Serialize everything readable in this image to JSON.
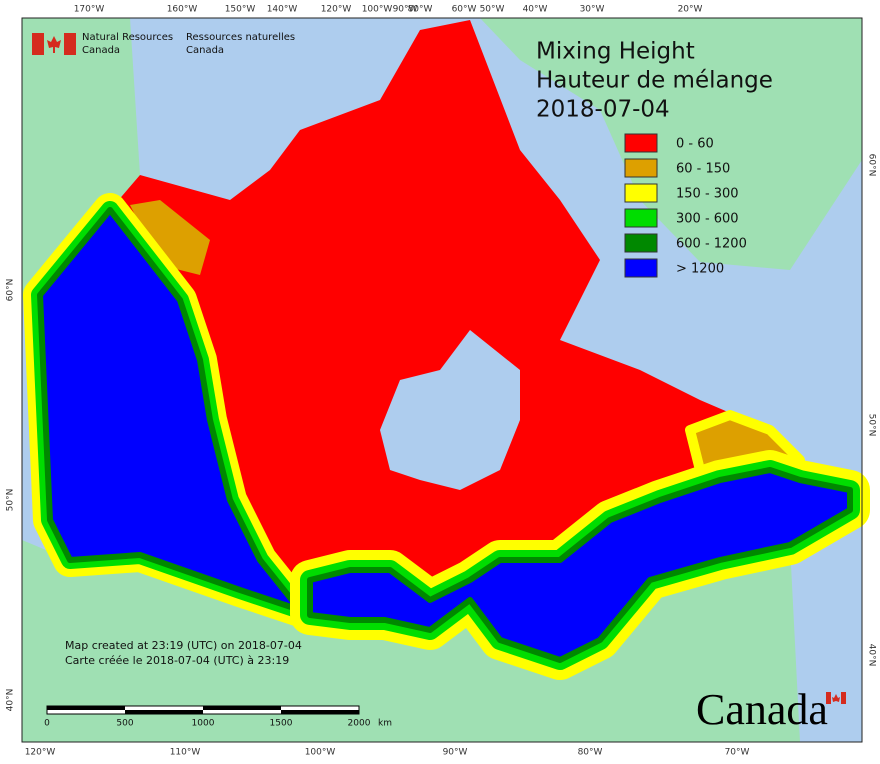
{
  "header": {
    "agency_en": "Natural Resources",
    "agency_en_country": "Canada",
    "agency_fr": "Ressources naturelles",
    "agency_fr_country": "Canada"
  },
  "title": {
    "line1": "Mixing Height",
    "line2": "Hauteur de mélange",
    "date": "2018-07-04"
  },
  "legend": [
    {
      "label": "0 - 60",
      "color": "#ff0000"
    },
    {
      "label": "60 - 150",
      "color": "#dda000"
    },
    {
      "label": "150 - 300",
      "color": "#ffff00"
    },
    {
      "label": "300 - 600",
      "color": "#00dd00"
    },
    {
      "label": "600 - 1200",
      "color": "#008800"
    },
    {
      "label": "> 1200",
      "color": "#0000ff"
    }
  ],
  "graticule": {
    "top": [
      "170°W",
      "160°W",
      "150°W",
      "140°W",
      "120°W",
      "100°W",
      "90°W",
      "80°W",
      "60°W",
      "50°W",
      "40°W",
      "30°W",
      "20°W"
    ],
    "bottom": [
      "120°W",
      "110°W",
      "100°W",
      "90°W",
      "80°W",
      "70°W"
    ],
    "left": [
      "60°N",
      "50°N",
      "40°N"
    ],
    "right": [
      "60°N",
      "50°N",
      "40°N"
    ]
  },
  "credits": {
    "en": "Map created at 23:19 (UTC) on 2018-07-04",
    "fr": "Carte créée le 2018-07-04 (UTC) à 23:19"
  },
  "scale_bar": {
    "ticks": [
      "0",
      "500",
      "1000",
      "1500",
      "2000"
    ],
    "unit": "km"
  },
  "wordmark": "Canada"
}
